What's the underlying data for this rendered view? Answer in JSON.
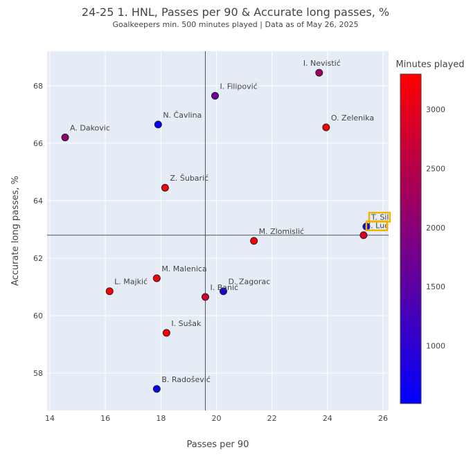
{
  "chart_data": {
    "type": "scatter",
    "title": "24-25 1. HNL, Passes per 90 & Accurate long passes, %",
    "subtitle": "Goalkeepers min. 500 minutes played | Data as of May 26, 2025",
    "xlabel": "Passes per 90",
    "ylabel": "Accurate long passes, %",
    "xlim": [
      13.9,
      26.2
    ],
    "ylim": [
      56.7,
      69.2
    ],
    "xticks": [
      14,
      16,
      18,
      20,
      22,
      24,
      26
    ],
    "yticks": [
      58,
      60,
      62,
      64,
      66,
      68
    ],
    "reference_lines": {
      "x": 19.6,
      "y": 62.8
    },
    "grid": true,
    "colorbar": {
      "title": "Minutes played",
      "min": 510,
      "max": 3300,
      "ticks": [
        1000,
        1500,
        2000,
        2500,
        3000
      ],
      "colors": [
        "#0000ff",
        "#ff0000"
      ]
    },
    "highlighted": [
      "T. Sil",
      "J. Luc"
    ],
    "highlight_color": "#f0b400",
    "points": [
      {
        "name": "I. Nevistić",
        "x": 23.7,
        "y": 68.45,
        "minutes": 2300,
        "label_pos": "top"
      },
      {
        "name": "I. Filipović",
        "x": 19.95,
        "y": 67.65,
        "minutes": 1650,
        "label_pos": "top-right"
      },
      {
        "name": "N. Čavlina",
        "x": 17.9,
        "y": 66.65,
        "minutes": 550,
        "label_pos": "top-right"
      },
      {
        "name": "O. Zelenika",
        "x": 23.95,
        "y": 66.55,
        "minutes": 3250,
        "label_pos": "top-right"
      },
      {
        "name": "A. Dakovic",
        "x": 14.55,
        "y": 66.2,
        "minutes": 2050,
        "label_pos": "top-right"
      },
      {
        "name": "Z. Šubarić",
        "x": 18.15,
        "y": 64.45,
        "minutes": 3200,
        "label_pos": "top-right"
      },
      {
        "name": "T. Sil",
        "x": 25.4,
        "y": 63.1,
        "minutes": 600,
        "label_pos": "top-right"
      },
      {
        "name": "J. Luc",
        "x": 25.3,
        "y": 62.8,
        "minutes": 2950,
        "label_pos": "right"
      },
      {
        "name": "M. Zlomislić",
        "x": 21.35,
        "y": 62.6,
        "minutes": 3250,
        "label_pos": "top-right"
      },
      {
        "name": "M. Malenica",
        "x": 17.85,
        "y": 61.3,
        "minutes": 3250,
        "label_pos": "top-right"
      },
      {
        "name": "L. Majkić",
        "x": 16.15,
        "y": 60.85,
        "minutes": 3300,
        "label_pos": "top-right"
      },
      {
        "name": "D. Zagorac",
        "x": 20.25,
        "y": 60.85,
        "minutes": 800,
        "label_pos": "top-right"
      },
      {
        "name": "I. Banić",
        "x": 19.6,
        "y": 60.65,
        "minutes": 2800,
        "label_pos": "top-right"
      },
      {
        "name": "I. Sušak",
        "x": 18.2,
        "y": 59.4,
        "minutes": 3250,
        "label_pos": "top-right"
      },
      {
        "name": "B. Radošević",
        "x": 17.85,
        "y": 57.45,
        "minutes": 510,
        "label_pos": "top-right"
      }
    ]
  }
}
